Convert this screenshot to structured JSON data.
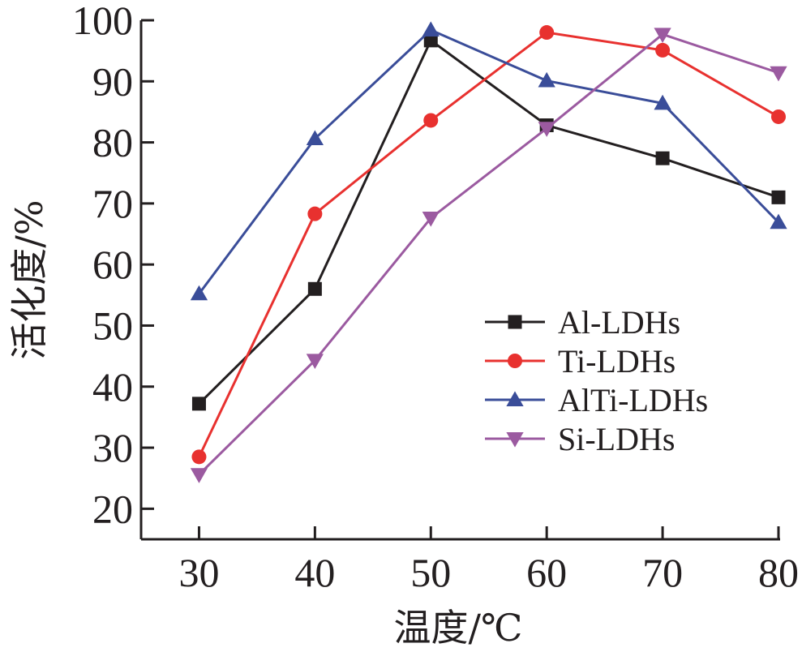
{
  "chart_data": {
    "type": "line",
    "xlabel": "温度/℃",
    "ylabel": "活化度/%",
    "x": [
      30,
      40,
      50,
      60,
      70,
      80
    ],
    "x_ticks": [
      "30",
      "40",
      "50",
      "60",
      "70",
      "80"
    ],
    "y_ticks": [
      "20",
      "30",
      "40",
      "50",
      "60",
      "70",
      "80",
      "90",
      "100"
    ],
    "xlim": [
      25,
      80
    ],
    "ylim": [
      15,
      100
    ],
    "grid": false,
    "legend_position": "right-middle",
    "series": [
      {
        "name": "Al-LDHs",
        "color": "#231f20",
        "marker": "square",
        "values": [
          37.2,
          56.0,
          96.7,
          82.8,
          77.4,
          71.0
        ]
      },
      {
        "name": "Ti-LDHs",
        "color": "#e8312f",
        "marker": "circle",
        "values": [
          28.5,
          68.3,
          83.6,
          98.0,
          95.1,
          84.2
        ]
      },
      {
        "name": "AlTi-LDHs",
        "color": "#3a4d99",
        "marker": "triangle-up",
        "values": [
          55.2,
          80.6,
          98.4,
          90.1,
          86.4,
          66.9
        ]
      },
      {
        "name": "Si-LDHs",
        "color": "#9b5aa0",
        "marker": "triangle-down",
        "values": [
          25.6,
          44.3,
          67.6,
          82.3,
          97.7,
          91.4
        ]
      }
    ]
  }
}
